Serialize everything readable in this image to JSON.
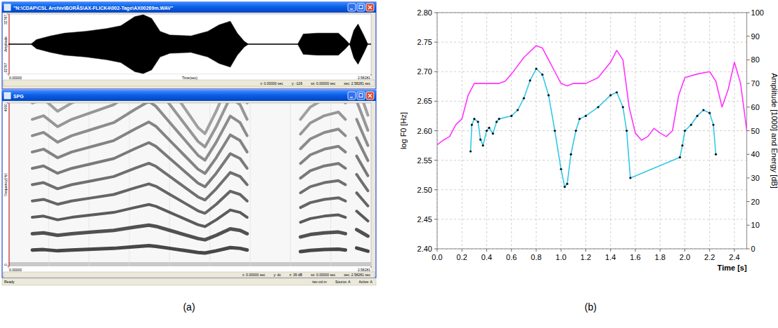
{
  "screenshot": {
    "panel_label": "(a)",
    "waveform_window": {
      "title": "\"N:\\CDAP\\CSL Archiv\\BORÅS\\AX-FLICK4\\002-Tage\\AX00269m.WAV\"",
      "ylabel": "Amplitude",
      "ylim": [
        -32767,
        32767
      ],
      "yticks": [
        -32767,
        32767
      ],
      "xlabel": "Time(sec)",
      "xlim": [
        0,
        2.58281
      ],
      "xticks": [
        {
          "value": 0,
          "label": "0.00000"
        },
        2.58281
      ],
      "status": [
        "x: 0.00000 sec",
        "y: -126",
        "ss: 0.00000 sec",
        "sec: 2.58281 sec"
      ],
      "envelope": {
        "x": [
          0,
          0.16,
          0.2,
          0.3,
          0.4,
          0.55,
          0.7,
          0.8,
          0.9,
          0.96,
          1.02,
          1.08,
          1.15,
          1.3,
          1.42,
          1.5,
          1.58,
          1.63,
          1.68,
          1.71,
          2.06,
          2.1,
          2.2,
          2.35,
          2.4,
          2.43,
          2.46,
          2.49,
          2.53,
          2.56,
          2.58281
        ],
        "values": [
          0,
          0,
          5000,
          9000,
          12000,
          14000,
          17000,
          20000,
          30000,
          32000,
          28000,
          14000,
          10000,
          9000,
          14000,
          21000,
          25000,
          12000,
          3000,
          0,
          0,
          11000,
          12000,
          12000,
          5000,
          0,
          15000,
          22000,
          10000,
          0,
          0
        ]
      }
    },
    "spectrogram_window": {
      "title": "SPG",
      "ylabel": "Frequency(Hz)",
      "ylim": [
        0,
        4000
      ],
      "yticks": [
        0,
        4000
      ],
      "xlim": [
        0,
        2.58281
      ],
      "xticks": [
        {
          "value": 0,
          "label": "0.00000"
        },
        2.58281
      ],
      "status": [
        "x: 0.00000 sec",
        "y: dc",
        "z: 39 dB",
        "ss: 0.00000 sec",
        "sec: 2.58281 sec"
      ],
      "f0": {
        "x": [
          0.17,
          0.25,
          0.35,
          0.45,
          0.6,
          0.75,
          0.9,
          1.0,
          1.05,
          1.15,
          1.25,
          1.35,
          1.4,
          1.48,
          1.58,
          1.65,
          1.7,
          1.85,
          2.08,
          2.15,
          2.25,
          2.35,
          2.4,
          2.45,
          2.48,
          2.52,
          2.56
        ],
        "values": [
          400,
          410,
          380,
          400,
          420,
          440,
          480,
          505,
          490,
          440,
          390,
          340,
          325,
          380,
          460,
          440,
          400,
          null,
          360,
          390,
          410,
          420,
          400,
          null,
          450,
          410,
          370
        ]
      }
    },
    "status_bar": {
      "left": "Ready",
      "right": [
        "iwv-csl.m",
        "Source: A",
        "Active: A"
      ]
    }
  },
  "chart_data": {
    "type": "line",
    "panel_label": "(b)",
    "xlabel": "Time [s]",
    "ylabel": "log F0 [Hz]",
    "y2label": "Amplitude [1000] and Energy [dB]",
    "xlim": [
      0,
      2.5
    ],
    "xticks": [
      {
        "value": 0,
        "label": "0.0"
      },
      0.2,
      0.4,
      0.6,
      0.8,
      {
        "value": 1,
        "label": "1.0"
      },
      1.2,
      1.4,
      1.6,
      1.8,
      {
        "value": 2,
        "label": "2.0"
      },
      2.2,
      2.4
    ],
    "ylim": [
      2.4,
      2.8
    ],
    "yticks": [
      {
        "value": 2.4,
        "label": "2.40"
      },
      2.45,
      {
        "value": 2.5,
        "label": "2.50"
      },
      2.55,
      {
        "value": 2.6,
        "label": "2.60"
      },
      2.65,
      {
        "value": 2.7,
        "label": "2.70"
      },
      2.75,
      {
        "value": 2.8,
        "label": "2.80"
      }
    ],
    "y2lim": [
      0,
      100
    ],
    "y2ticks": [
      0,
      10,
      20,
      30,
      40,
      50,
      60,
      70,
      80,
      90,
      100
    ],
    "grid": true,
    "series": [
      {
        "color": "#ff33ff",
        "axis": "y2",
        "line_style": "solid",
        "x": [
          0,
          0.05,
          0.1,
          0.15,
          0.2,
          0.25,
          0.3,
          0.4,
          0.5,
          0.55,
          0.6,
          0.7,
          0.8,
          0.85,
          0.9,
          0.95,
          1.0,
          1.05,
          1.1,
          1.2,
          1.3,
          1.4,
          1.45,
          1.5,
          1.55,
          1.6,
          1.65,
          1.7,
          1.75,
          1.8,
          1.85,
          1.9,
          1.95,
          2.0,
          2.1,
          2.2,
          2.25,
          2.3,
          2.35,
          2.4,
          2.45,
          2.5
        ],
        "values": [
          44,
          46,
          47.5,
          52.5,
          55,
          65,
          70,
          70,
          70,
          71,
          74,
          81,
          86,
          85,
          80,
          75,
          70,
          69,
          70,
          70,
          72.5,
          79,
          84,
          80,
          60,
          49,
          46,
          47.5,
          51,
          49,
          47.5,
          50,
          65,
          72.5,
          74,
          75,
          71,
          60,
          67.5,
          79,
          70,
          50
        ]
      },
      {
        "color": "#33c8e8",
        "marker": "dot",
        "line_style": "solid",
        "x": [
          0.27,
          0.28,
          0.3,
          0.33,
          0.35,
          0.37,
          0.4,
          0.42,
          0.45,
          0.48,
          0.5,
          0.6,
          0.65,
          0.7,
          0.75,
          0.8,
          0.85,
          0.9,
          0.95,
          1.0,
          1.03,
          1.05,
          1.08,
          1.12,
          1.15,
          1.2,
          1.3,
          1.4,
          1.45,
          1.5,
          1.53,
          1.56,
          1.96,
          1.98,
          2.0,
          2.05,
          2.1,
          2.15,
          2.2,
          2.23,
          2.25
        ],
        "values": [
          2.565,
          2.61,
          2.62,
          2.615,
          2.585,
          2.575,
          2.6,
          2.605,
          2.595,
          2.615,
          2.62,
          2.625,
          2.635,
          2.655,
          2.685,
          2.705,
          2.695,
          2.66,
          2.6,
          2.535,
          2.505,
          2.51,
          2.56,
          2.6,
          2.62,
          2.625,
          2.64,
          2.66,
          2.665,
          2.64,
          2.6,
          2.52,
          2.555,
          2.575,
          2.6,
          2.61,
          2.625,
          2.635,
          2.63,
          2.61,
          2.56
        ]
      }
    ]
  }
}
